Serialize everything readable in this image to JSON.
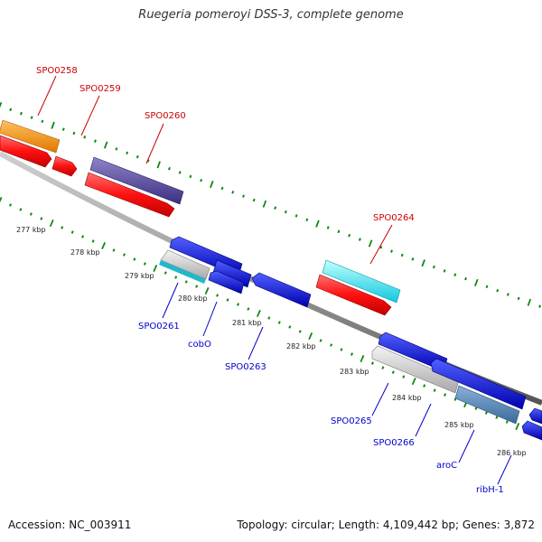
{
  "title": "Ruegeria pomeroyi DSS-3, complete genome",
  "footer": {
    "accession": "Accession: NC_003911",
    "info": "Topology: circular; Length: 4,109,442 bp; Genes: 3,872"
  },
  "tick_labels": [
    "277 kbp",
    "278 kbp",
    "279 kbp",
    "280 kbp",
    "281 kbp",
    "282 kbp",
    "283 kbp",
    "284 kbp",
    "285 kbp",
    "286 kbp"
  ],
  "genes_top": [
    {
      "name": "SPO0258",
      "color": "#cc0000"
    },
    {
      "name": "SPO0259",
      "color": "#cc0000"
    },
    {
      "name": "SPO0260",
      "color": "#cc0000"
    },
    {
      "name": "SPO0264",
      "color": "#cc0000"
    }
  ],
  "genes_bottom": [
    {
      "name": "SPO0261",
      "color": "#0000cc"
    },
    {
      "name": "cobO",
      "color": "#0000cc"
    },
    {
      "name": "SPO0263",
      "color": "#0000cc"
    },
    {
      "name": "SPO0265",
      "color": "#0000cc"
    },
    {
      "name": "SPO0266",
      "color": "#0000cc"
    },
    {
      "name": "aroC",
      "color": "#0000cc"
    },
    {
      "name": "ribH-1",
      "color": "#0000cc"
    }
  ],
  "colors": {
    "forward_cds": "#ff0000",
    "reverse_cds": "#0000ee",
    "tick": "#118811",
    "backbone": "#888888"
  }
}
